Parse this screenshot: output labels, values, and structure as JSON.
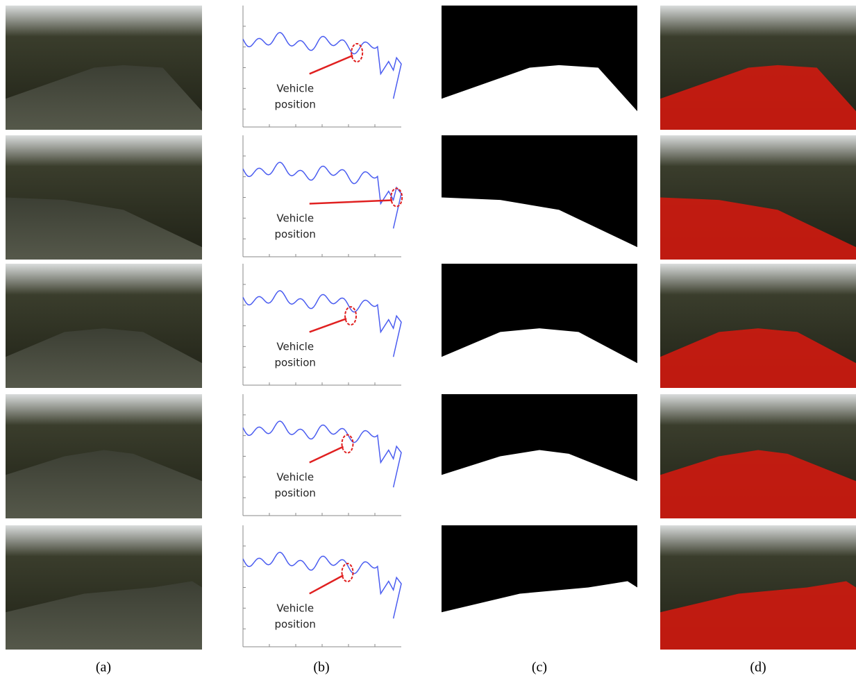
{
  "figure": {
    "rows": [
      {
        "label": [
          "Vehicle",
          "position"
        ]
      },
      {
        "label": [
          "Vehicle",
          "position"
        ]
      },
      {
        "label": [
          "Vehicle",
          "position"
        ]
      },
      {
        "label": [
          "Vehicle",
          "position"
        ]
      },
      {
        "label": [
          "Vehicle",
          "position"
        ]
      }
    ],
    "captions": [
      "(a)",
      "(b)",
      "(c)",
      "(d)"
    ]
  }
}
